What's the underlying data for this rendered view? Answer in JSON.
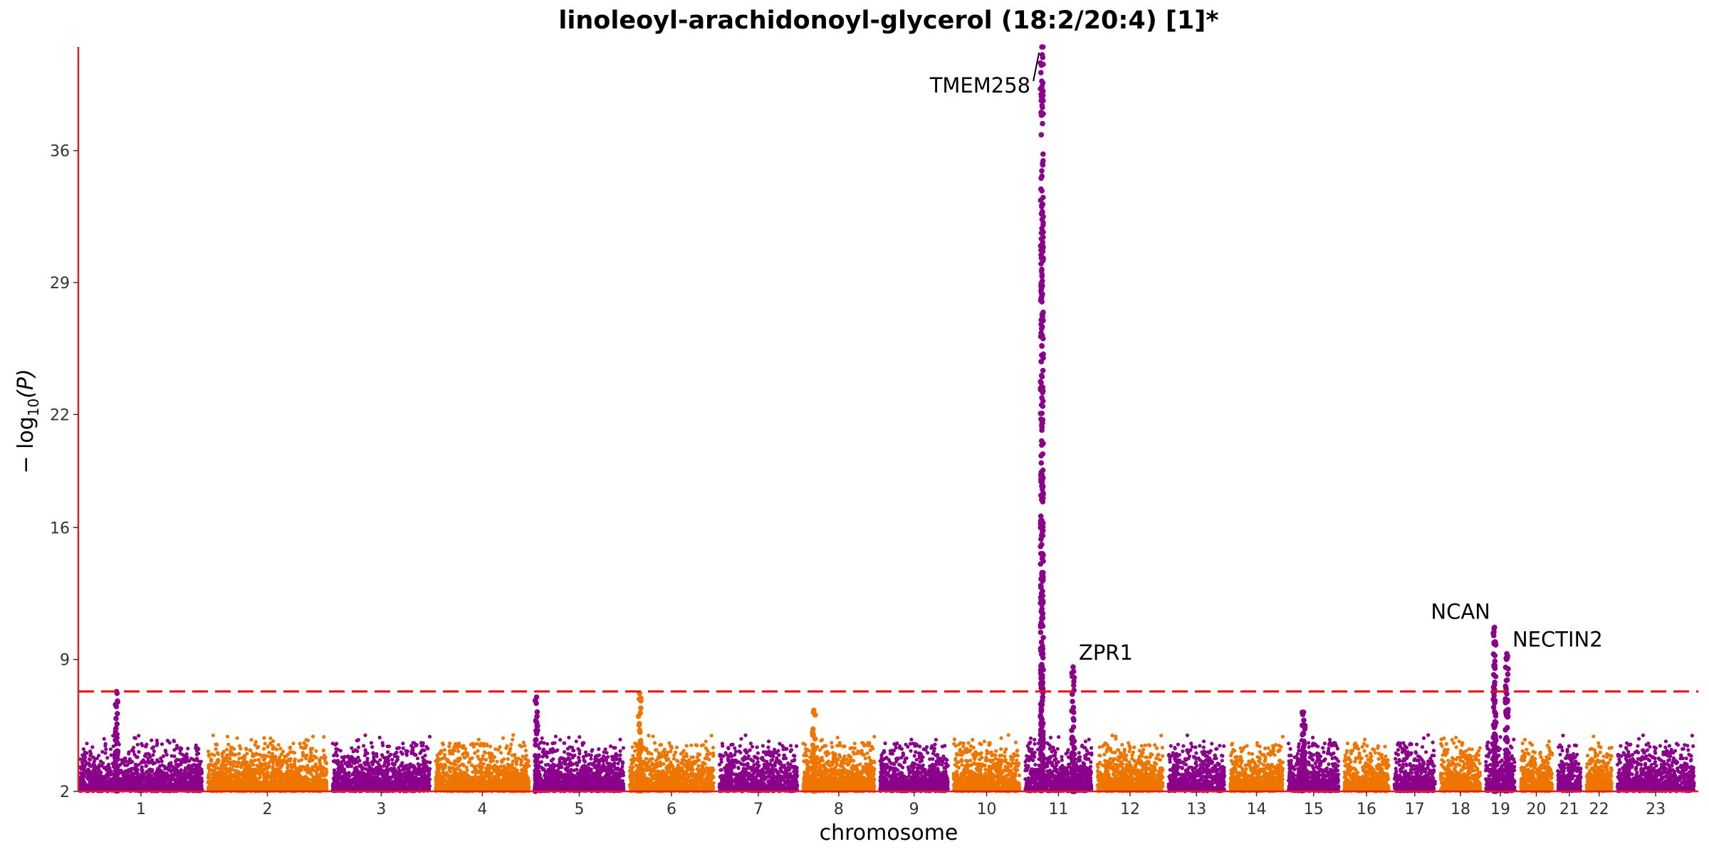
{
  "chart_data": {
    "type": "scatter",
    "subtype": "manhattan",
    "title": "linoleoyl-arachidonoyl-glycerol (18:2/20:4) [1]*",
    "xlabel": "chromosome",
    "ylabel_prefix": "− log",
    "ylabel_sub": "10",
    "ylabel_suffix": "(P)",
    "ylim": [
      2,
      41.5
    ],
    "yticks": [
      "2",
      "9",
      "16",
      "22",
      "29",
      "36"
    ],
    "ytick_values": [
      2,
      9,
      16,
      22,
      29,
      36
    ],
    "significance_threshold": 7.3,
    "colors": {
      "odd": "#8B008B",
      "even": "#EE7600",
      "axis": "#e02020",
      "threshold": "#ee1111"
    },
    "chromosomes": [
      {
        "label": "1",
        "length": 249
      },
      {
        "label": "2",
        "length": 242
      },
      {
        "label": "3",
        "length": 198
      },
      {
        "label": "4",
        "length": 190
      },
      {
        "label": "5",
        "length": 181
      },
      {
        "label": "6",
        "length": 171
      },
      {
        "label": "7",
        "length": 159
      },
      {
        "label": "8",
        "length": 145
      },
      {
        "label": "9",
        "length": 138
      },
      {
        "label": "10",
        "length": 134
      },
      {
        "label": "11",
        "length": 135
      },
      {
        "label": "12",
        "length": 133
      },
      {
        "label": "13",
        "length": 114
      },
      {
        "label": "14",
        "length": 107
      },
      {
        "label": "15",
        "length": 102
      },
      {
        "label": "16",
        "length": 90
      },
      {
        "label": "17",
        "length": 83
      },
      {
        "label": "18",
        "length": 80
      },
      {
        "label": "19",
        "length": 59
      },
      {
        "label": "20",
        "length": 64
      },
      {
        "label": "21",
        "length": 47
      },
      {
        "label": "22",
        "length": 51
      },
      {
        "label": "23",
        "length": 156
      }
    ],
    "peaks": [
      {
        "chrom": "1",
        "pos": 0.3,
        "max": 7.3
      },
      {
        "chrom": "5",
        "pos": 0.02,
        "max": 7.0
      },
      {
        "chrom": "6",
        "pos": 0.12,
        "max": 7.2
      },
      {
        "chrom": "8",
        "pos": 0.15,
        "max": 6.3
      },
      {
        "chrom": "11",
        "pos": 0.25,
        "max": 41.5
      },
      {
        "chrom": "11",
        "pos": 0.72,
        "max": 8.6
      },
      {
        "chrom": "15",
        "pos": 0.3,
        "max": 6.2
      },
      {
        "chrom": "19",
        "pos": 0.3,
        "max": 10.7
      },
      {
        "chrom": "19",
        "pos": 0.72,
        "max": 9.3
      }
    ],
    "annotations": [
      {
        "text": "TMEM258",
        "chrom": "11",
        "pos": 0.25,
        "y": 41.2
      },
      {
        "text": "ZPR1",
        "chrom": "11",
        "pos": 0.72,
        "y": 8.6
      },
      {
        "text": "NCAN",
        "chrom": "19",
        "pos": 0.3,
        "y": 10.7
      },
      {
        "text": "NECTIN2",
        "chrom": "19",
        "pos": 0.72,
        "y": 9.3
      }
    ]
  }
}
